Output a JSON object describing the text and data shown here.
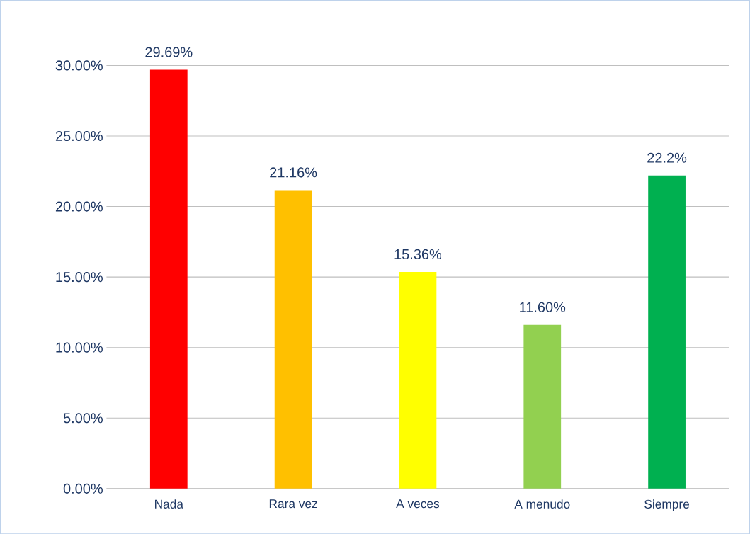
{
  "chart_data": {
    "type": "bar",
    "categories": [
      "Nada",
      "Rara vez",
      "A veces",
      "A menudo",
      "Siempre"
    ],
    "values": [
      29.69,
      21.16,
      15.36,
      11.6,
      22.2
    ],
    "colors": [
      "#ff0000",
      "#ffc000",
      "#ffff00",
      "#92d050",
      "#00b050"
    ],
    "value_labels": [
      "29.69%",
      "21.16%",
      "15.36%",
      "11.60%",
      "22.2%"
    ],
    "ylim": [
      0,
      30
    ],
    "yticks": [
      {
        "value": 0,
        "label": "0.00%"
      },
      {
        "value": 5,
        "label": "5.00%"
      },
      {
        "value": 10,
        "label": "10.00%"
      },
      {
        "value": 15,
        "label": "15.00%"
      },
      {
        "value": 20,
        "label": "20.00%"
      },
      {
        "value": 25,
        "label": "25.00%"
      },
      {
        "value": 30,
        "label": "30.00%"
      }
    ],
    "grid": "y"
  }
}
